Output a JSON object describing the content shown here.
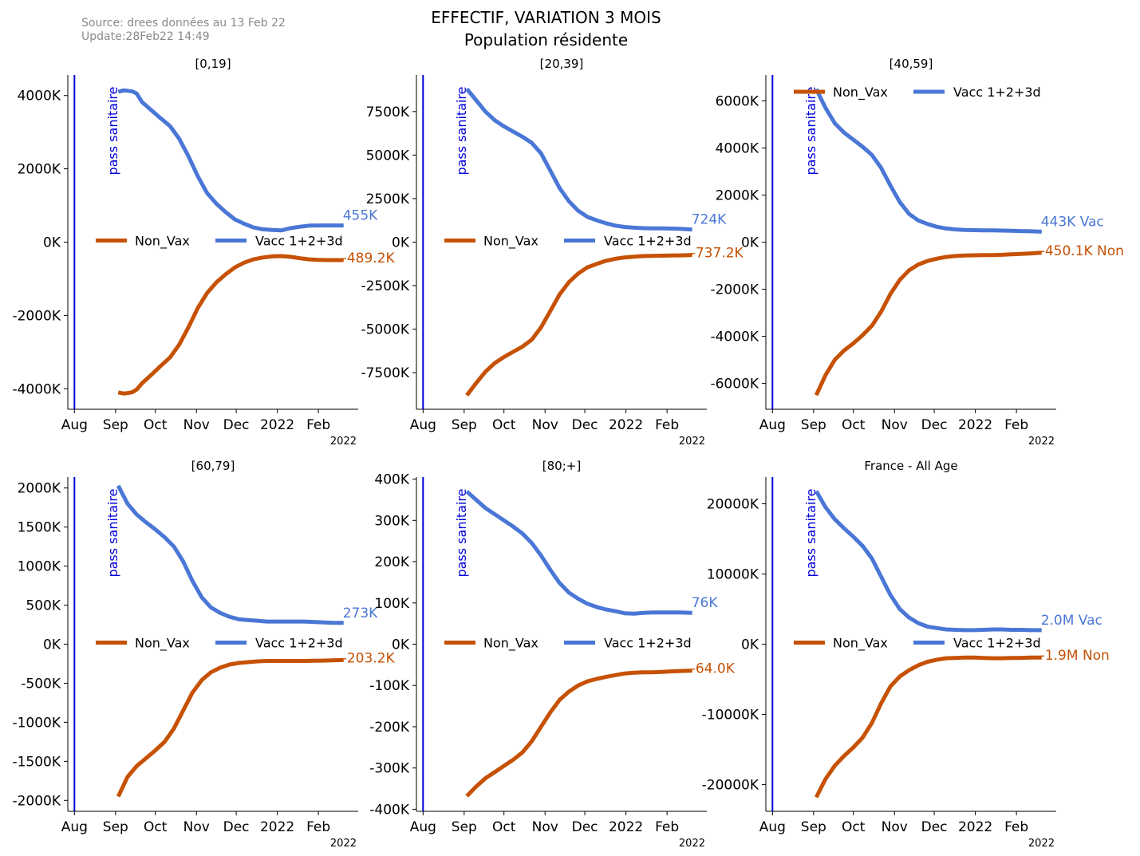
{
  "header": {
    "source": "Source: drees données au 13 Feb 22",
    "update": "Update:28Feb22 14:49",
    "title_line1": "EFFECTIF, VARIATION 3 MOIS",
    "title_line2": "Population résidente"
  },
  "colors": {
    "non_vax": "#c65104",
    "vacc": "#4a77d6",
    "pass_line": "#0000dd"
  },
  "annotation": "pass sanitaire",
  "legend_labels": [
    "Non_Vax",
    "Vacc 1+2+3d"
  ],
  "x_ticks": [
    "Aug",
    "Sep",
    "Oct",
    "Nov",
    "Dec",
    "2022",
    "Feb"
  ],
  "x_offset_label": "2022",
  "chart_data": [
    {
      "type": "line",
      "title": "[0,19]",
      "x_range": [
        "2021-07-27",
        "2022-03-03"
      ],
      "pass_sanitaire_date": "2021-08-01",
      "ylim": [
        -4560,
        4560
      ],
      "yticks": [
        -4000,
        -2000,
        0,
        2000,
        4000
      ],
      "ytick_labels": [
        "-4000K",
        "-2000K",
        "0K",
        "2000K",
        "4000K"
      ],
      "legend_position": "center",
      "series": [
        {
          "name": "Vacc 1+2+3d",
          "dates": [
            "2021-09-03",
            "2021-09-07",
            "2021-09-10",
            "2021-09-14",
            "2021-09-17",
            "2021-09-21",
            "2021-09-28",
            "2021-10-05",
            "2021-10-12",
            "2021-10-19",
            "2021-10-26",
            "2021-11-02",
            "2021-11-09",
            "2021-11-16",
            "2021-11-23",
            "2021-11-30",
            "2021-12-07",
            "2021-12-14",
            "2021-12-21",
            "2021-12-28",
            "2022-01-04",
            "2022-01-11",
            "2022-01-18",
            "2022-01-25",
            "2022-02-01",
            "2022-02-08",
            "2022-02-15",
            "2022-02-20"
          ],
          "values": [
            4100,
            4140,
            4130,
            4110,
            4050,
            3820,
            3600,
            3380,
            3170,
            2820,
            2340,
            1800,
            1340,
            1050,
            820,
            620,
            500,
            400,
            350,
            330,
            320,
            380,
            420,
            450,
            455,
            455,
            455,
            455
          ]
        },
        {
          "name": "Non_Vax",
          "dates": [
            "2021-09-03",
            "2021-09-07",
            "2021-09-10",
            "2021-09-14",
            "2021-09-17",
            "2021-09-21",
            "2021-09-28",
            "2021-10-05",
            "2021-10-12",
            "2021-10-19",
            "2021-10-26",
            "2021-11-02",
            "2021-11-09",
            "2021-11-16",
            "2021-11-23",
            "2021-11-30",
            "2021-12-07",
            "2021-12-14",
            "2021-12-21",
            "2021-12-28",
            "2022-01-04",
            "2022-01-11",
            "2022-01-18",
            "2022-01-25",
            "2022-02-01",
            "2022-02-08",
            "2022-02-15",
            "2022-02-20"
          ],
          "values": [
            -4100,
            -4130,
            -4120,
            -4090,
            -4020,
            -3850,
            -3620,
            -3380,
            -3150,
            -2800,
            -2320,
            -1800,
            -1390,
            -1100,
            -880,
            -690,
            -560,
            -470,
            -420,
            -390,
            -380,
            -400,
            -440,
            -470,
            -485,
            -489,
            -489,
            -489
          ]
        }
      ],
      "end_labels": {
        "vacc": "455K",
        "non_vax": "-489.2K"
      }
    },
    {
      "type": "line",
      "title": "[20,39]",
      "x_range": [
        "2021-07-27",
        "2022-03-03"
      ],
      "pass_sanitaire_date": "2021-08-01",
      "ylim": [
        -9600,
        9600
      ],
      "yticks": [
        -7500,
        -5000,
        -2500,
        0,
        2500,
        5000,
        7500
      ],
      "ytick_labels": [
        "-7500K",
        "-5000K",
        "-2500K",
        "0K",
        "2500K",
        "5000K",
        "7500K"
      ],
      "legend_position": "center",
      "series": [
        {
          "name": "Vacc 1+2+3d",
          "dates": [
            "2021-09-03",
            "2021-09-10",
            "2021-09-17",
            "2021-09-24",
            "2021-10-01",
            "2021-10-08",
            "2021-10-15",
            "2021-10-22",
            "2021-10-29",
            "2021-11-05",
            "2021-11-12",
            "2021-11-19",
            "2021-11-26",
            "2021-12-03",
            "2021-12-10",
            "2021-12-17",
            "2021-12-24",
            "2021-12-31",
            "2022-01-07",
            "2022-01-14",
            "2022-01-21",
            "2022-01-28",
            "2022-02-04",
            "2022-02-11",
            "2022-02-20"
          ],
          "values": [
            8800,
            8150,
            7500,
            7000,
            6650,
            6350,
            6050,
            5700,
            5100,
            4100,
            3100,
            2350,
            1800,
            1450,
            1250,
            1080,
            950,
            870,
            830,
            800,
            790,
            790,
            780,
            760,
            724
          ]
        },
        {
          "name": "Non_Vax",
          "dates": [
            "2021-09-03",
            "2021-09-10",
            "2021-09-17",
            "2021-09-24",
            "2021-10-01",
            "2021-10-08",
            "2021-10-15",
            "2021-10-22",
            "2021-10-29",
            "2021-11-05",
            "2021-11-12",
            "2021-11-19",
            "2021-11-26",
            "2021-12-03",
            "2021-12-10",
            "2021-12-17",
            "2021-12-24",
            "2021-12-31",
            "2022-01-07",
            "2022-01-14",
            "2022-01-21",
            "2022-01-28",
            "2022-02-04",
            "2022-02-11",
            "2022-02-20"
          ],
          "values": [
            -8800,
            -8100,
            -7450,
            -6950,
            -6600,
            -6300,
            -6000,
            -5600,
            -4900,
            -3950,
            -3000,
            -2300,
            -1800,
            -1450,
            -1250,
            -1070,
            -960,
            -880,
            -840,
            -800,
            -790,
            -780,
            -770,
            -760,
            -737
          ]
        }
      ],
      "end_labels": {
        "vacc": "724K",
        "non_vax": "-737.2K"
      }
    },
    {
      "type": "line",
      "title": "[40,59]",
      "x_range": [
        "2021-07-27",
        "2022-03-03"
      ],
      "pass_sanitaire_date": "2021-08-01",
      "ylim": [
        -7100,
        7100
      ],
      "yticks": [
        -6000,
        -4000,
        -2000,
        0,
        2000,
        4000,
        6000
      ],
      "ytick_labels": [
        "-6000K",
        "-4000K",
        "-2000K",
        "0K",
        "2000K",
        "4000K",
        "6000K"
      ],
      "legend_position": "top",
      "series": [
        {
          "name": "Vacc 1+2+3d",
          "dates": [
            "2021-09-03",
            "2021-09-10",
            "2021-09-17",
            "2021-09-24",
            "2021-10-01",
            "2021-10-08",
            "2021-10-15",
            "2021-10-22",
            "2021-10-29",
            "2021-11-05",
            "2021-11-12",
            "2021-11-19",
            "2021-11-26",
            "2021-12-03",
            "2021-12-10",
            "2021-12-17",
            "2021-12-24",
            "2021-12-31",
            "2022-01-07",
            "2022-01-14",
            "2022-01-21",
            "2022-01-28",
            "2022-02-04",
            "2022-02-11",
            "2022-02-20"
          ],
          "values": [
            6500,
            5700,
            5050,
            4650,
            4350,
            4050,
            3700,
            3150,
            2400,
            1700,
            1200,
            920,
            770,
            650,
            580,
            540,
            520,
            510,
            500,
            500,
            490,
            480,
            470,
            460,
            443
          ]
        },
        {
          "name": "Non_Vax",
          "dates": [
            "2021-09-03",
            "2021-09-10",
            "2021-09-17",
            "2021-09-24",
            "2021-10-01",
            "2021-10-08",
            "2021-10-15",
            "2021-10-22",
            "2021-10-29",
            "2021-11-05",
            "2021-11-12",
            "2021-11-19",
            "2021-11-26",
            "2021-12-03",
            "2021-12-10",
            "2021-12-17",
            "2021-12-24",
            "2021-12-31",
            "2022-01-07",
            "2022-01-14",
            "2022-01-21",
            "2022-01-28",
            "2022-02-04",
            "2022-02-11",
            "2022-02-20"
          ],
          "values": [
            -6500,
            -5650,
            -5000,
            -4600,
            -4300,
            -3950,
            -3550,
            -2950,
            -2200,
            -1600,
            -1200,
            -950,
            -800,
            -700,
            -630,
            -590,
            -570,
            -560,
            -550,
            -550,
            -540,
            -520,
            -500,
            -480,
            -450
          ]
        }
      ],
      "end_labels": {
        "vacc": "443K Vac",
        "non_vax": "-450.1K Non"
      }
    },
    {
      "type": "line",
      "title": "[60,79]",
      "x_range": [
        "2021-07-27",
        "2022-03-03"
      ],
      "pass_sanitaire_date": "2021-08-01",
      "ylim": [
        -2140,
        2140
      ],
      "yticks": [
        -2000,
        -1500,
        -1000,
        -500,
        0,
        500,
        1000,
        1500,
        2000
      ],
      "ytick_labels": [
        "-2000K",
        "-1500K",
        "-1000K",
        "-500K",
        "0K",
        "500K",
        "1000K",
        "1500K",
        "2000K"
      ],
      "legend_position": "center",
      "series": [
        {
          "name": "Vacc 1+2+3d",
          "dates": [
            "2021-09-03",
            "2021-09-10",
            "2021-09-17",
            "2021-09-24",
            "2021-10-01",
            "2021-10-08",
            "2021-10-15",
            "2021-10-22",
            "2021-10-29",
            "2021-11-05",
            "2021-11-12",
            "2021-11-19",
            "2021-11-26",
            "2021-12-03",
            "2021-12-10",
            "2021-12-17",
            "2021-12-24",
            "2021-12-31",
            "2022-01-07",
            "2022-01-14",
            "2022-01-21",
            "2022-01-28",
            "2022-02-04",
            "2022-02-11",
            "2022-02-20"
          ],
          "values": [
            2030,
            1800,
            1660,
            1560,
            1470,
            1370,
            1250,
            1060,
            810,
            600,
            470,
            400,
            350,
            320,
            310,
            300,
            290,
            290,
            290,
            290,
            290,
            285,
            280,
            275,
            273
          ]
        },
        {
          "name": "Non_Vax",
          "dates": [
            "2021-09-03",
            "2021-09-10",
            "2021-09-17",
            "2021-09-24",
            "2021-10-01",
            "2021-10-08",
            "2021-10-15",
            "2021-10-22",
            "2021-10-29",
            "2021-11-05",
            "2021-11-12",
            "2021-11-19",
            "2021-11-26",
            "2021-12-03",
            "2021-12-10",
            "2021-12-17",
            "2021-12-24",
            "2021-12-31",
            "2022-01-07",
            "2022-01-14",
            "2022-01-21",
            "2022-01-28",
            "2022-02-04",
            "2022-02-11",
            "2022-02-20"
          ],
          "values": [
            -1950,
            -1700,
            -1560,
            -1460,
            -1360,
            -1250,
            -1080,
            -850,
            -620,
            -460,
            -360,
            -300,
            -260,
            -240,
            -230,
            -220,
            -215,
            -215,
            -215,
            -215,
            -215,
            -212,
            -210,
            -206,
            -203
          ]
        }
      ],
      "end_labels": {
        "vacc": "273K",
        "non_vax": "-203.2K"
      }
    },
    {
      "type": "line",
      "title": "[80;+]",
      "x_range": [
        "2021-07-27",
        "2022-03-03"
      ],
      "pass_sanitaire_date": "2021-08-01",
      "ylim": [
        -405,
        405
      ],
      "yticks": [
        -400,
        -300,
        -200,
        -100,
        0,
        100,
        200,
        300,
        400
      ],
      "ytick_labels": [
        "-400K",
        "-300K",
        "-200K",
        "-100K",
        "0K",
        "100K",
        "200K",
        "300K",
        "400K"
      ],
      "legend_position": "center",
      "series": [
        {
          "name": "Vacc 1+2+3d",
          "dates": [
            "2021-09-03",
            "2021-09-10",
            "2021-09-17",
            "2021-09-24",
            "2021-10-01",
            "2021-10-08",
            "2021-10-15",
            "2021-10-22",
            "2021-10-29",
            "2021-11-05",
            "2021-11-12",
            "2021-11-19",
            "2021-11-26",
            "2021-12-03",
            "2021-12-10",
            "2021-12-17",
            "2021-12-24",
            "2021-12-31",
            "2022-01-07",
            "2022-01-14",
            "2022-01-21",
            "2022-01-28",
            "2022-02-04",
            "2022-02-11",
            "2022-02-20"
          ],
          "values": [
            370,
            350,
            330,
            315,
            300,
            285,
            268,
            245,
            215,
            180,
            148,
            125,
            110,
            98,
            90,
            84,
            80,
            75,
            74,
            76,
            77,
            77,
            77,
            77,
            76
          ]
        },
        {
          "name": "Non_Vax",
          "dates": [
            "2021-09-03",
            "2021-09-10",
            "2021-09-17",
            "2021-09-24",
            "2021-10-01",
            "2021-10-08",
            "2021-10-15",
            "2021-10-22",
            "2021-10-29",
            "2021-11-05",
            "2021-11-12",
            "2021-11-19",
            "2021-11-26",
            "2021-12-03",
            "2021-12-10",
            "2021-12-17",
            "2021-12-24",
            "2021-12-31",
            "2022-01-07",
            "2022-01-14",
            "2022-01-21",
            "2022-01-28",
            "2022-02-04",
            "2022-02-11",
            "2022-02-20"
          ],
          "values": [
            -368,
            -345,
            -325,
            -310,
            -295,
            -280,
            -262,
            -235,
            -200,
            -165,
            -135,
            -115,
            -100,
            -90,
            -84,
            -79,
            -75,
            -71,
            -69,
            -68,
            -68,
            -67,
            -66,
            -65,
            -64
          ]
        }
      ],
      "end_labels": {
        "vacc": "76K",
        "non_vax": "-64.0K"
      }
    },
    {
      "type": "line",
      "title": "France - All Age",
      "x_range": [
        "2021-07-27",
        "2022-03-03"
      ],
      "pass_sanitaire_date": "2021-08-01",
      "ylim": [
        -23800,
        23800
      ],
      "yticks": [
        -20000,
        -10000,
        0,
        10000,
        20000
      ],
      "ytick_labels": [
        "-20000K",
        "-10000K",
        "0K",
        "10000K",
        "20000K"
      ],
      "legend_position": "center",
      "series": [
        {
          "name": "Vacc 1+2+3d",
          "dates": [
            "2021-09-03",
            "2021-09-10",
            "2021-09-17",
            "2021-09-24",
            "2021-10-01",
            "2021-10-08",
            "2021-10-15",
            "2021-10-22",
            "2021-10-29",
            "2021-11-05",
            "2021-11-12",
            "2021-11-19",
            "2021-11-26",
            "2021-12-03",
            "2021-12-10",
            "2021-12-17",
            "2021-12-24",
            "2021-12-31",
            "2022-01-07",
            "2022-01-14",
            "2022-01-21",
            "2022-01-28",
            "2022-02-04",
            "2022-02-11",
            "2022-02-20"
          ],
          "values": [
            21800,
            19500,
            17800,
            16500,
            15300,
            14000,
            12200,
            9600,
            7000,
            5000,
            3800,
            3000,
            2500,
            2300,
            2100,
            2050,
            2000,
            2000,
            2050,
            2100,
            2100,
            2050,
            2050,
            2000,
            2000
          ]
        },
        {
          "name": "Non_Vax",
          "dates": [
            "2021-09-03",
            "2021-09-10",
            "2021-09-17",
            "2021-09-24",
            "2021-10-01",
            "2021-10-08",
            "2021-10-15",
            "2021-10-22",
            "2021-10-29",
            "2021-11-05",
            "2021-11-12",
            "2021-11-19",
            "2021-11-26",
            "2021-12-03",
            "2021-12-10",
            "2021-12-17",
            "2021-12-24",
            "2021-12-31",
            "2022-01-07",
            "2022-01-14",
            "2022-01-21",
            "2022-01-28",
            "2022-02-04",
            "2022-02-11",
            "2022-02-20"
          ],
          "values": [
            -21800,
            -19200,
            -17300,
            -15900,
            -14700,
            -13300,
            -11200,
            -8400,
            -6000,
            -4600,
            -3700,
            -3000,
            -2500,
            -2200,
            -2000,
            -1950,
            -1900,
            -1900,
            -1950,
            -2000,
            -2000,
            -1950,
            -1950,
            -1900,
            -1900
          ]
        }
      ],
      "end_labels": {
        "vacc": "2.0M Vac",
        "non_vax": "-1.9M Non"
      }
    }
  ]
}
